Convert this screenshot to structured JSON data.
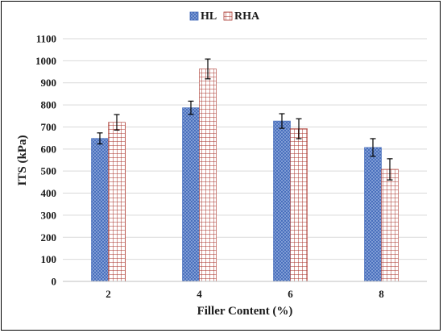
{
  "chart_data": {
    "type": "bar",
    "xlabel": "Filler Content (%)",
    "ylabel": "ITS (kPa)",
    "categories": [
      "2",
      "4",
      "6",
      "8"
    ],
    "ylim": [
      0,
      1100
    ],
    "yticks": [
      0,
      100,
      200,
      300,
      400,
      500,
      600,
      700,
      800,
      900,
      1000,
      1100
    ],
    "grid": true,
    "legend_position": "top-center",
    "series": [
      {
        "name": "HL",
        "color": "#4472c4",
        "pattern": "crosshatch-dots",
        "values": [
          648,
          787,
          727,
          607
        ],
        "errors": [
          25,
          30,
          33,
          40
        ]
      },
      {
        "name": "RHA",
        "color": "#b03a2e",
        "pattern": "grid",
        "values": [
          721,
          963,
          692,
          508
        ],
        "errors": [
          35,
          45,
          45,
          48
        ]
      }
    ]
  }
}
